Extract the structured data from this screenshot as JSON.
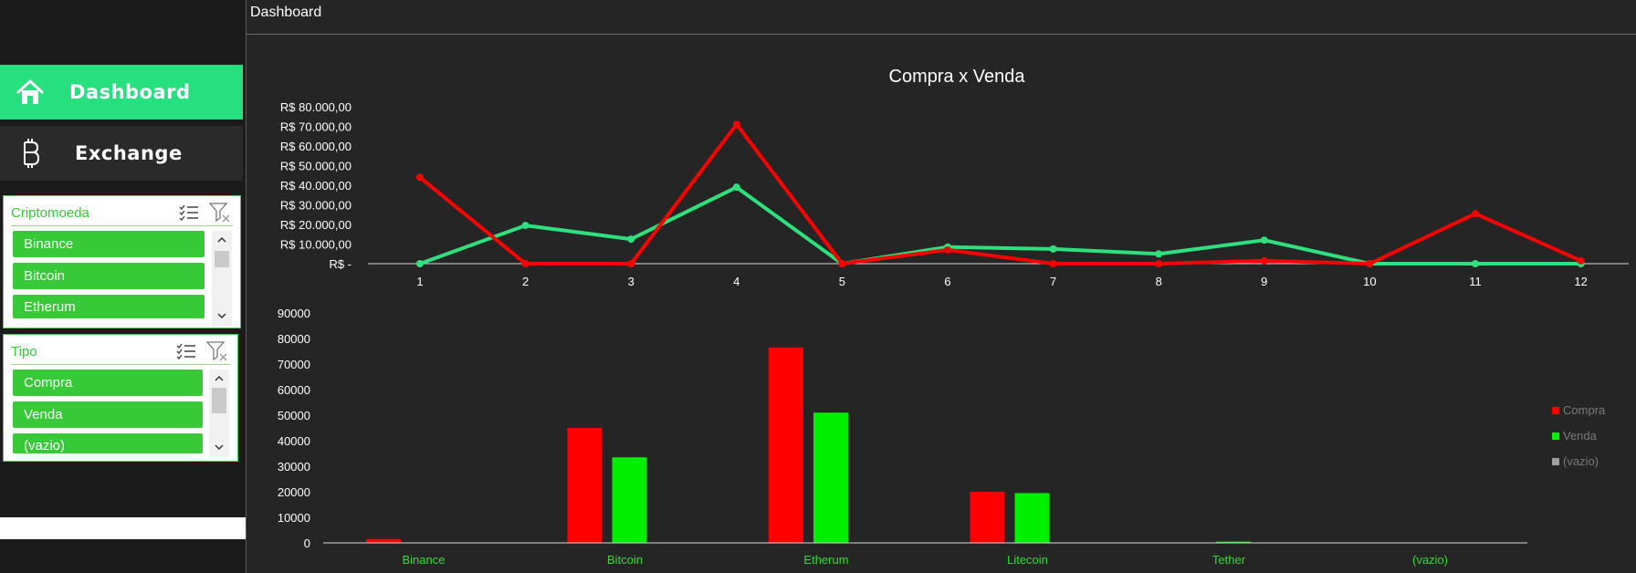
{
  "page": {
    "title": "Dashboard"
  },
  "sidebar": {
    "nav": [
      {
        "label": "Dashboard",
        "icon": "home-icon",
        "active": true
      },
      {
        "label": "Exchange",
        "icon": "bitcoin-icon",
        "active": false
      }
    ],
    "slicers": [
      {
        "title": "Criptomoeda",
        "items": [
          "Binance",
          "Bitcoin",
          "Etherum"
        ]
      },
      {
        "title": "Tipo",
        "items": [
          "Compra",
          "Venda",
          "(vazio)"
        ]
      }
    ]
  },
  "colors": {
    "compra": "#ff0000",
    "venda_line": "#2ee07e",
    "venda_bar": "#00ee00",
    "vazio": "#a0a0a0",
    "accent": "#26e07f"
  },
  "chart_data": [
    {
      "type": "line",
      "title": "Compra x Venda",
      "x": [
        1,
        2,
        3,
        4,
        5,
        6,
        7,
        8,
        9,
        10,
        11,
        12
      ],
      "ylim": [
        0,
        80000
      ],
      "ytick_labels": [
        "R$ -",
        "R$ 10.000,00",
        "R$ 20.000,00",
        "R$ 30.000,00",
        "R$ 40.000,00",
        "R$ 50.000,00",
        "R$ 60.000,00",
        "R$ 70.000,00",
        "R$ 80.000,00"
      ],
      "series": [
        {
          "key": "compra",
          "values": [
            44000,
            0,
            0,
            71000,
            0,
            7000,
            0,
            0,
            1500,
            0,
            25500,
            1500
          ]
        },
        {
          "key": "venda",
          "values": [
            0,
            19500,
            12500,
            39000,
            0,
            8500,
            7500,
            5000,
            12000,
            0,
            0,
            0
          ]
        }
      ],
      "legend": "none"
    },
    {
      "type": "bar",
      "categories": [
        "Binance",
        "Bitcoin",
        "Etherum",
        "Litecoin",
        "Tether",
        "(vazio)"
      ],
      "ylim": [
        0,
        90000
      ],
      "yticks": [
        0,
        10000,
        20000,
        30000,
        40000,
        50000,
        60000,
        70000,
        80000,
        90000
      ],
      "series": [
        {
          "name": "Compra",
          "values": [
            1500,
            45000,
            76500,
            20000,
            0,
            0
          ]
        },
        {
          "name": "Venda",
          "values": [
            0,
            33500,
            51000,
            19500,
            500,
            0
          ]
        },
        {
          "name": "(vazio)",
          "values": [
            0,
            0,
            0,
            0,
            0,
            0
          ]
        }
      ],
      "legend": "right"
    }
  ]
}
